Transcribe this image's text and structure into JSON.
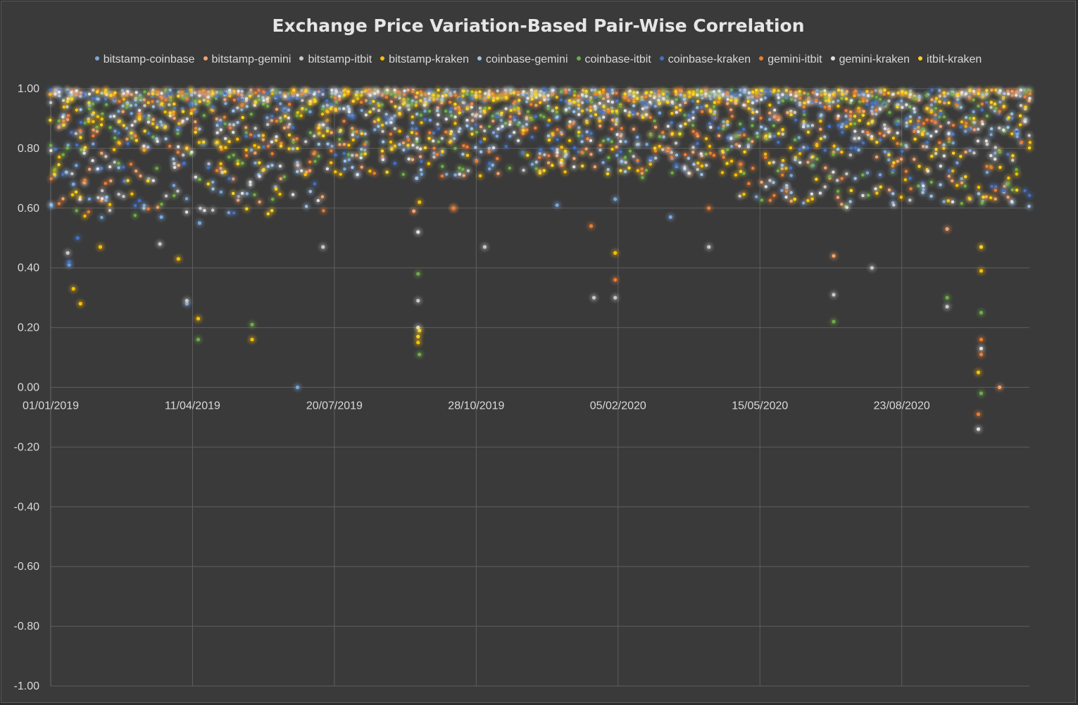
{
  "chart_data": {
    "type": "scatter",
    "title": "Exchange Price Variation-Based Pair-Wise Correlation",
    "xlabel": "",
    "ylabel": "",
    "ylim": [
      -1.0,
      1.0
    ],
    "xlim": [
      "01/01/2019",
      "21/11/2020"
    ],
    "y_ticks": [
      "1.00",
      "0.80",
      "0.60",
      "0.40",
      "0.20",
      "0.00",
      "-0.20",
      "-0.40",
      "-0.60",
      "-0.80",
      "-1.00"
    ],
    "x_ticks": [
      "01/01/2019",
      "11/04/2019",
      "20/07/2019",
      "28/10/2019",
      "05/02/2020",
      "15/05/2020",
      "23/08/2020"
    ],
    "grid": true,
    "legend_position": "top",
    "series": [
      {
        "name": "bitstamp-coinbase",
        "color": "#7aa6db",
        "outliers": [
          [
            "2019-01-14",
            0.41
          ],
          [
            "2019-01-17",
            0.68
          ],
          [
            "2019-03-20",
            0.57
          ],
          [
            "2019-04-07",
            0.28
          ],
          [
            "2019-04-16",
            0.55
          ],
          [
            "2019-06-24",
            0.0
          ],
          [
            "2019-12-24",
            0.61
          ],
          [
            "2020-02-03",
            0.63
          ],
          [
            "2020-03-13",
            0.57
          ]
        ]
      },
      {
        "name": "bitstamp-gemini",
        "color": "#f4a26a",
        "outliers": [
          [
            "2019-09-14",
            0.59
          ],
          [
            "2019-10-12",
            0.6
          ],
          [
            "2020-07-06",
            0.44
          ],
          [
            "2020-09-24",
            0.53
          ],
          [
            "2020-10-31",
            0.0
          ]
        ]
      },
      {
        "name": "bitstamp-itbit",
        "color": "#c9c9c9",
        "outliers": [
          [
            "2019-01-13",
            0.45
          ],
          [
            "2019-03-19",
            0.48
          ],
          [
            "2019-04-07",
            0.29
          ],
          [
            "2019-05-02",
            0.72
          ],
          [
            "2019-07-12",
            0.47
          ],
          [
            "2019-09-17",
            0.29
          ],
          [
            "2019-11-03",
            0.47
          ],
          [
            "2020-01-19",
            0.3
          ],
          [
            "2020-02-03",
            0.3
          ],
          [
            "2020-04-09",
            0.47
          ],
          [
            "2020-07-06",
            0.31
          ],
          [
            "2020-08-02",
            0.4
          ],
          [
            "2020-09-24",
            0.27
          ]
        ]
      },
      {
        "name": "bitstamp-kraken",
        "color": "#ffc000",
        "outliers": [
          [
            "2019-01-17",
            0.33
          ],
          [
            "2019-01-22",
            0.28
          ],
          [
            "2019-02-05",
            0.47
          ],
          [
            "2019-04-01",
            0.43
          ],
          [
            "2019-04-15",
            0.23
          ],
          [
            "2019-05-23",
            0.16
          ],
          [
            "2019-09-17",
            0.15
          ],
          [
            "2019-09-18",
            0.62
          ],
          [
            "2020-02-03",
            0.45
          ],
          [
            "2020-10-18",
            0.39
          ],
          [
            "2020-10-16",
            0.05
          ]
        ]
      },
      {
        "name": "coinbase-gemini",
        "color": "#9dc3e6",
        "outliers": [
          [
            "2019-01-12",
            0.72
          ],
          [
            "2019-09-16",
            0.7
          ]
        ]
      },
      {
        "name": "coinbase-itbit",
        "color": "#70ad47",
        "outliers": [
          [
            "2019-04-15",
            0.16
          ],
          [
            "2019-05-23",
            0.21
          ],
          [
            "2019-09-17",
            0.38
          ],
          [
            "2019-09-18",
            0.11
          ],
          [
            "2020-07-06",
            0.22
          ],
          [
            "2020-09-24",
            0.3
          ],
          [
            "2020-10-18",
            0.25
          ],
          [
            "2020-10-18",
            -0.02
          ]
        ]
      },
      {
        "name": "coinbase-kraken",
        "color": "#4472c4",
        "outliers": [
          [
            "2019-01-14",
            0.42
          ],
          [
            "2019-01-20",
            0.5
          ],
          [
            "2019-02-22",
            0.69
          ],
          [
            "2019-04-05",
            0.75
          ]
        ]
      },
      {
        "name": "gemini-itbit",
        "color": "#ed7d31",
        "outliers": [
          [
            "2019-10-12",
            0.6
          ],
          [
            "2020-01-17",
            0.54
          ],
          [
            "2020-02-03",
            0.36
          ],
          [
            "2020-04-09",
            0.6
          ],
          [
            "2020-10-16",
            -0.09
          ],
          [
            "2020-10-18",
            0.16
          ],
          [
            "2020-10-18",
            0.11
          ]
        ]
      },
      {
        "name": "gemini-kraken",
        "color": "#e0e0e0",
        "outliers": [
          [
            "2019-09-17",
            0.2
          ],
          [
            "2019-09-17",
            0.52
          ],
          [
            "2020-10-16",
            -0.14
          ],
          [
            "2020-10-18",
            0.13
          ]
        ]
      },
      {
        "name": "itbit-kraken",
        "color": "#ffd21f",
        "outliers": [
          [
            "2019-09-17",
            0.17
          ],
          [
            "2019-09-18",
            0.19
          ],
          [
            "2020-10-18",
            0.47
          ]
        ]
      }
    ]
  }
}
